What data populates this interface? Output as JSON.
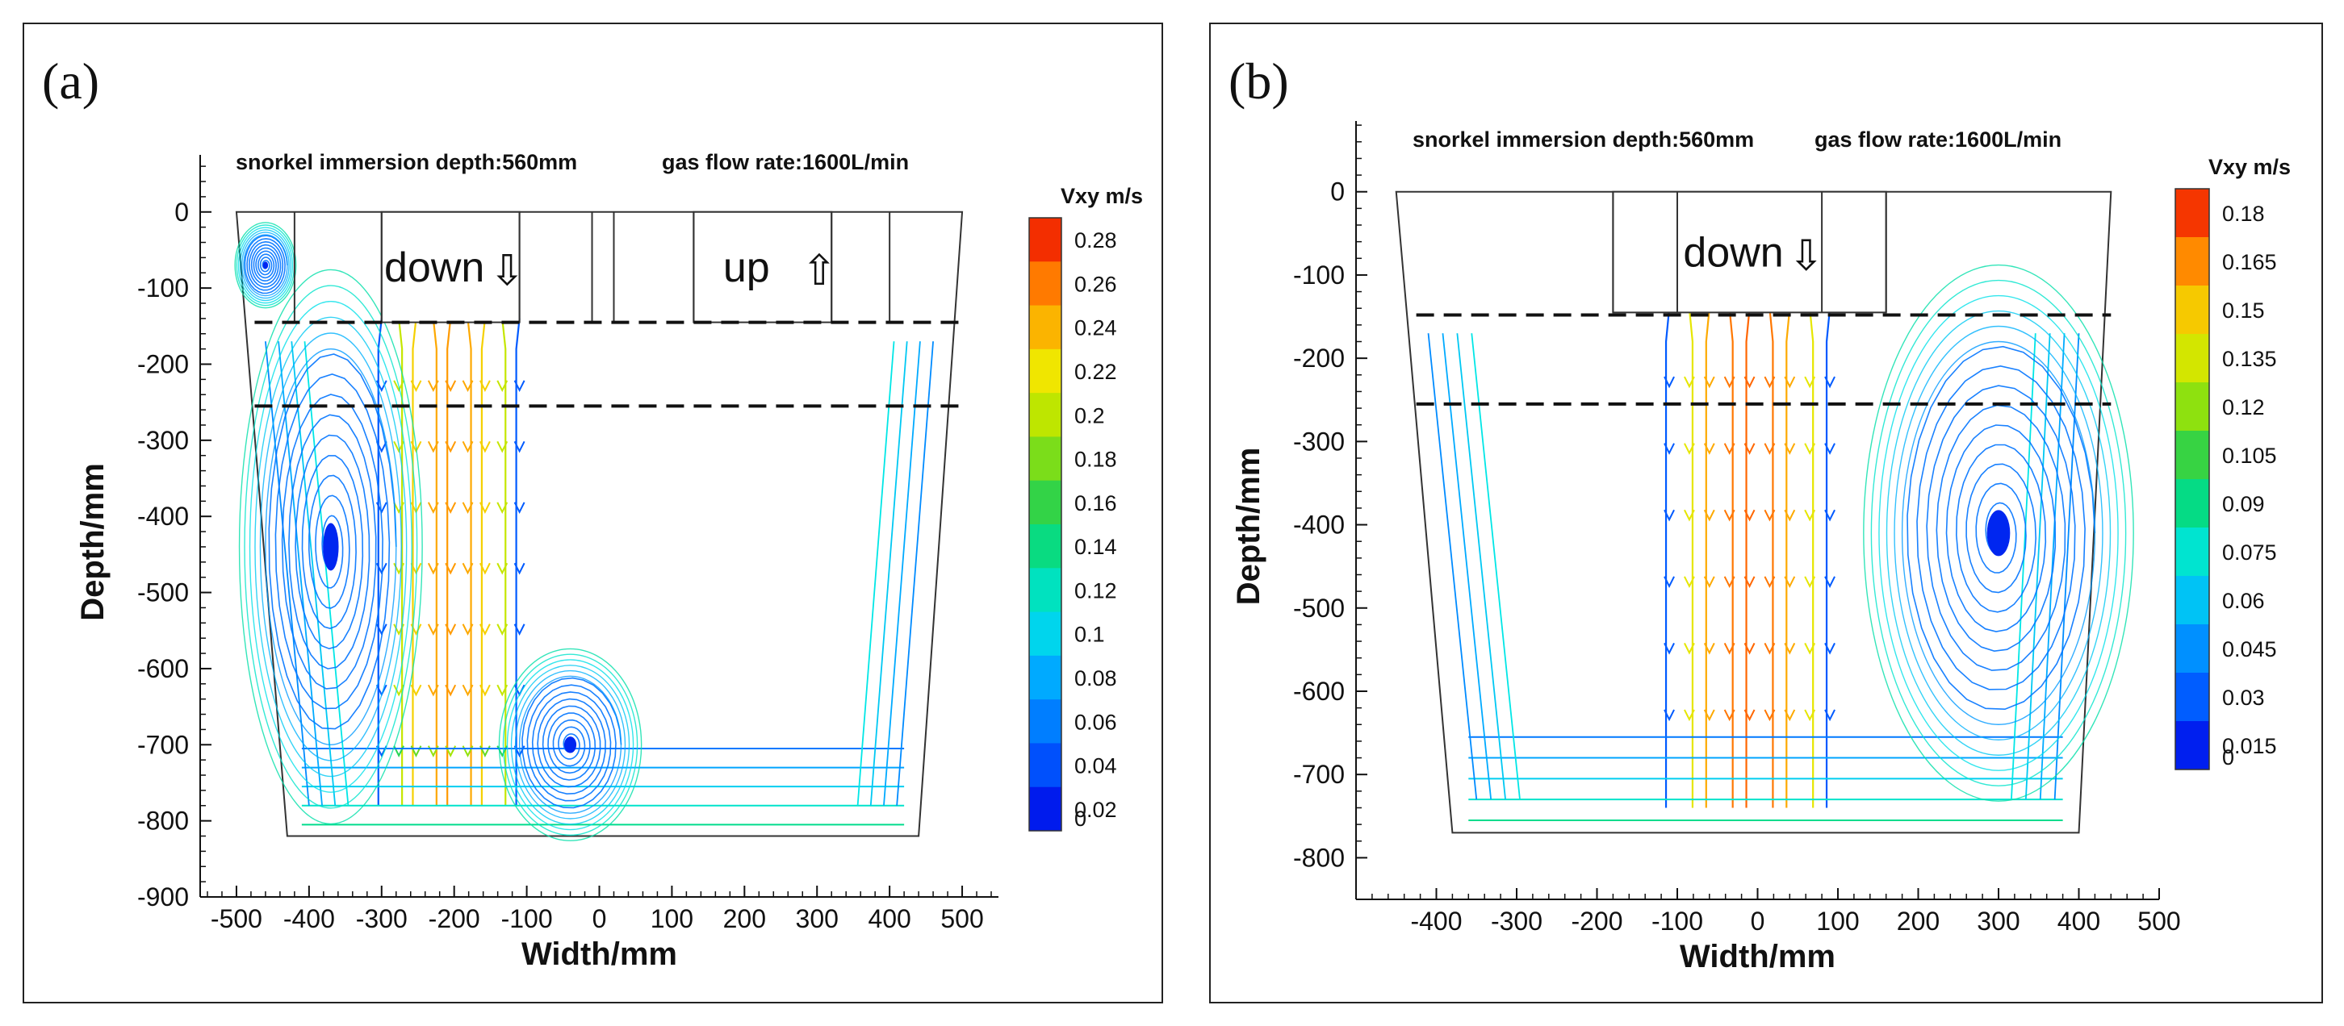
{
  "chart_data": [
    {
      "type": "streamline",
      "panel_label": "(a)",
      "subtitle_depth": "snorkel immersion depth:560mm",
      "subtitle_gas": "gas flow rate:1600L/min",
      "xlabel": "Width/mm",
      "ylabel": "Depth/mm",
      "xlim": [
        -550,
        550
      ],
      "ylim": [
        -900,
        75
      ],
      "xticks": [
        -500,
        -400,
        -300,
        -200,
        -100,
        0,
        100,
        200,
        300,
        400,
        500
      ],
      "yticks": [
        0,
        -100,
        -200,
        -300,
        -400,
        -500,
        -600,
        -700,
        -800,
        -900
      ],
      "colorbar_title": "Vxy m/s",
      "colorbar_ticks": [
        "0.28",
        "0.26",
        "0.24",
        "0.22",
        "0.2",
        "0.18",
        "0.16",
        "0.14",
        "0.12",
        "0.1",
        "0.08",
        "0.06",
        "0.04",
        "0.02",
        "0"
      ],
      "snorkels": [
        {
          "label": "down",
          "arrow": "⇩",
          "x0": -300,
          "x1": -110
        },
        {
          "label": "up",
          "arrow": "⇧",
          "x0": 130,
          "x1": 320
        }
      ],
      "vessel": {
        "top_left": -500,
        "top_right": 500,
        "bottom_left": -430,
        "bottom_right": 440,
        "top": 0,
        "bottom": -820
      },
      "dashed_depths": [
        -145,
        -255
      ],
      "vortices": [
        {
          "x": -370,
          "y": -440,
          "rx": 90,
          "ry": 260
        },
        {
          "x": -40,
          "y": -700,
          "rx": 70,
          "ry": 90
        },
        {
          "x": -460,
          "y": -70,
          "rx": 30,
          "ry": 40
        }
      ],
      "jet": {
        "x0": -300,
        "x1": -110,
        "vmax": 0.24
      }
    },
    {
      "type": "streamline",
      "panel_label": "(b)",
      "subtitle_depth": "snorkel immersion depth:560mm",
      "subtitle_gas": "gas flow rate:1600L/min",
      "xlabel": "Width/mm",
      "ylabel": "Depth/mm",
      "xlim": [
        -500,
        500
      ],
      "ylim": [
        -850,
        85
      ],
      "xticks": [
        -400,
        -300,
        -200,
        -100,
        0,
        100,
        200,
        300,
        400,
        500
      ],
      "yticks": [
        0,
        -100,
        -200,
        -300,
        -400,
        -500,
        -600,
        -700,
        -800
      ],
      "colorbar_title": "Vxy m/s",
      "colorbar_ticks": [
        "0.18",
        "0.165",
        "0.15",
        "0.135",
        "0.12",
        "0.105",
        "0.09",
        "0.075",
        "0.06",
        "0.045",
        "0.03",
        "0.015",
        "0"
      ],
      "snorkels": [
        {
          "label": "down",
          "arrow": "⇩",
          "x0": -180,
          "x1": 160
        }
      ],
      "vessel": {
        "top_left": -450,
        "top_right": 440,
        "bottom_left": -380,
        "bottom_right": 400,
        "top": 0,
        "bottom": -770
      },
      "dashed_depths": [
        -148,
        -255
      ],
      "vortices": [
        {
          "x": 300,
          "y": -410,
          "rx": 120,
          "ry": 230
        }
      ],
      "jet": {
        "x0": -110,
        "x1": 90,
        "vmax": 0.165
      }
    }
  ]
}
